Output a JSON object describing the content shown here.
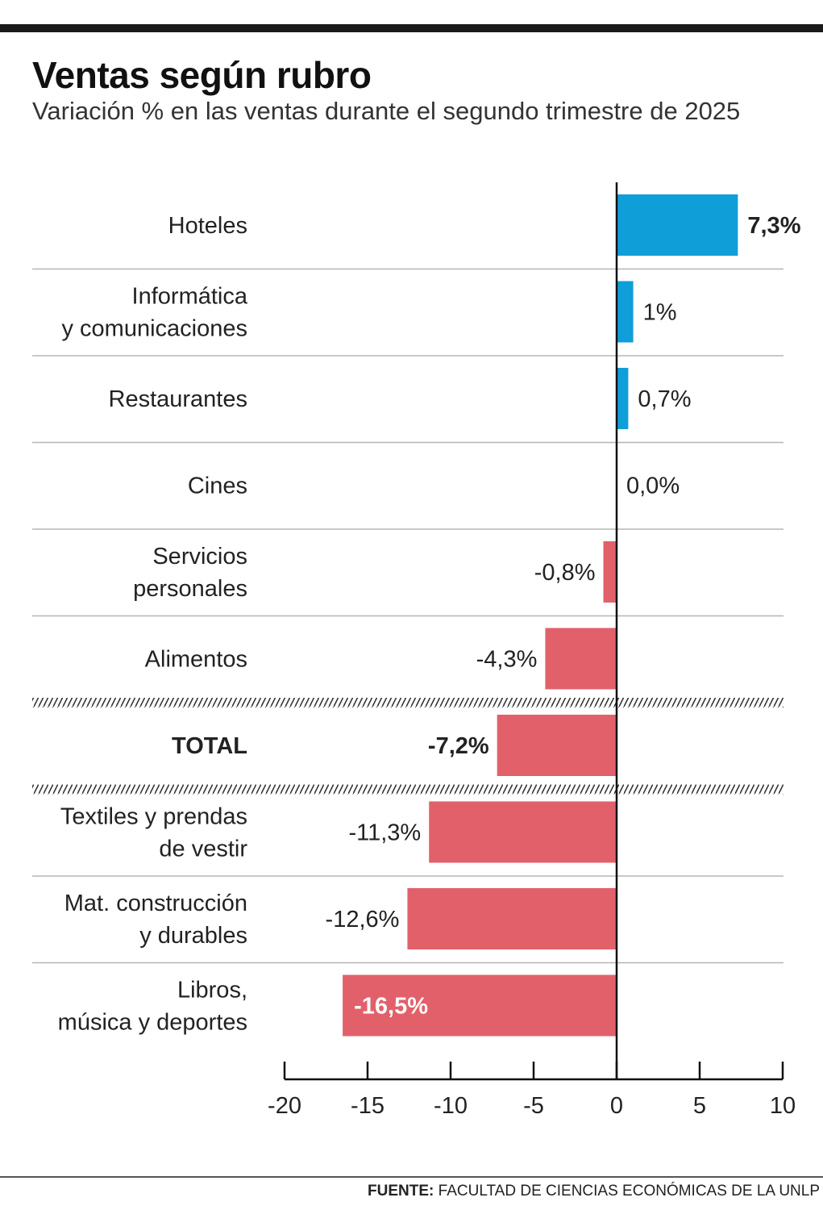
{
  "title": "Ventas según rubro",
  "subtitle": "Variación % en las ventas durante el segundo trimestre de 2025",
  "source_prefix": "FUENTE:",
  "source_text": "FACULTAD DE CIENCIAS ECONÓMICAS DE LA UNLP",
  "colors": {
    "positive": "#0f9ed8",
    "negative": "#e2606a",
    "text": "#222222",
    "axis": "#111111",
    "separator": "#b5b5b5",
    "label_on_bar": "#ffffff"
  },
  "chart_data": {
    "type": "bar",
    "orientation": "horizontal",
    "title": "Ventas según rubro",
    "subtitle": "Variación % en las ventas durante el segundo trimestre de 2025",
    "xlabel": "",
    "ylabel": "",
    "xlim": [
      -20,
      10
    ],
    "xticks": [
      -20,
      -15,
      -10,
      -5,
      0,
      5,
      10
    ],
    "xtick_labels": [
      "-20",
      "-15",
      "-10",
      "-5",
      "0",
      "5",
      "10"
    ],
    "grid": false,
    "categories": [
      {
        "lines": [
          "Hoteles"
        ],
        "value": 7.3,
        "label": "7,3%",
        "bold": true,
        "label_inside": false,
        "separator_after": "line"
      },
      {
        "lines": [
          "Informática",
          "y comunicaciones"
        ],
        "value": 1.0,
        "label": "1%",
        "bold": false,
        "label_inside": false,
        "separator_after": "line"
      },
      {
        "lines": [
          "Restaurantes"
        ],
        "value": 0.7,
        "label": "0,7%",
        "bold": false,
        "label_inside": false,
        "separator_after": "line"
      },
      {
        "lines": [
          "Cines"
        ],
        "value": 0.0,
        "label": "0,0%",
        "bold": false,
        "label_inside": false,
        "separator_after": "line"
      },
      {
        "lines": [
          "Servicios",
          "personales"
        ],
        "value": -0.8,
        "label": "-0,8%",
        "bold": false,
        "label_inside": false,
        "separator_after": "line"
      },
      {
        "lines": [
          "Alimentos"
        ],
        "value": -4.3,
        "label": "-4,3%",
        "bold": false,
        "label_inside": false,
        "separator_after": "hatch"
      },
      {
        "lines": [
          "TOTAL"
        ],
        "value": -7.2,
        "label": "-7,2%",
        "bold": true,
        "label_inside": false,
        "separator_after": "hatch"
      },
      {
        "lines": [
          "Textiles y prendas",
          "de vestir"
        ],
        "value": -11.3,
        "label": "-11,3%",
        "bold": false,
        "label_inside": false,
        "separator_after": "line"
      },
      {
        "lines": [
          "Mat. construcción",
          "y durables"
        ],
        "value": -12.6,
        "label": "-12,6%",
        "bold": false,
        "label_inside": false,
        "separator_after": "line"
      },
      {
        "lines": [
          "Libros,",
          "música y deportes"
        ],
        "value": -16.5,
        "label": "-16,5%",
        "bold": true,
        "label_inside": true,
        "separator_after": "none"
      }
    ]
  }
}
